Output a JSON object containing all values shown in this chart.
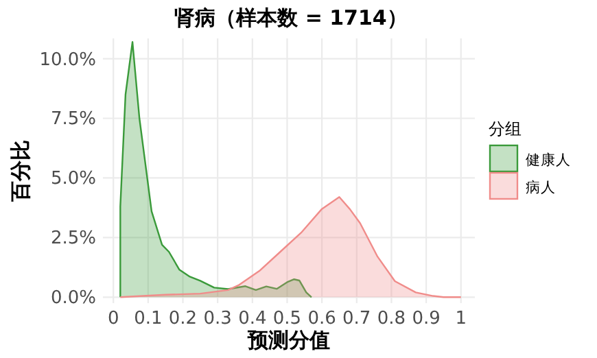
{
  "chart_data": {
    "type": "area",
    "title": "肾病（样本数 = 1714）",
    "xlabel": "预测分值",
    "ylabel": "百分比",
    "legend_title": "分组",
    "legend": "right",
    "grid": true,
    "xlim": [
      -0.03,
      1.04
    ],
    "ylim": [
      -0.25,
      10.85
    ],
    "xticks": [
      0,
      {
        "value": 0.1,
        "label": "0.1"
      },
      {
        "value": 0.2,
        "label": "0.2"
      },
      {
        "value": 0.3,
        "label": "0.3"
      },
      {
        "value": 0.4,
        "label": "0.4"
      },
      {
        "value": 0.5,
        "label": "0.5"
      },
      {
        "value": 0.6,
        "label": "0.6"
      },
      {
        "value": 0.7,
        "label": "0.7"
      },
      {
        "value": 0.8,
        "label": "0.8"
      },
      {
        "value": 0.9,
        "label": "0.9"
      },
      1
    ],
    "yticks": [
      {
        "value": 0,
        "label": "0.0%"
      },
      {
        "value": 2.5,
        "label": "2.5%"
      },
      {
        "value": 5,
        "label": "5.0%"
      },
      {
        "value": 7.5,
        "label": "7.5%"
      },
      {
        "value": 10,
        "label": "10.0%"
      }
    ],
    "series": [
      {
        "name": "健康人",
        "color": "#3a9a3a",
        "x": [
          0.02,
          0.02,
          0.035,
          0.055,
          0.075,
          0.11,
          0.14,
          0.16,
          0.19,
          0.22,
          0.25,
          0.29,
          0.33,
          0.38,
          0.41,
          0.44,
          0.47,
          0.5,
          0.52,
          0.535,
          0.555,
          0.57
        ],
        "values": [
          0,
          3.8,
          8.5,
          10.7,
          7.5,
          3.6,
          2.2,
          1.9,
          1.15,
          0.86,
          0.69,
          0.4,
          0.34,
          0.46,
          0.3,
          0.45,
          0.35,
          0.63,
          0.75,
          0.7,
          0.2,
          0
        ]
      },
      {
        "name": "病人",
        "color": "#f08c8a",
        "x": [
          0.02,
          0.15,
          0.25,
          0.33,
          0.36,
          0.42,
          0.48,
          0.54,
          0.6,
          0.65,
          0.68,
          0.71,
          0.76,
          0.81,
          0.87,
          0.92,
          0.95,
          1.0
        ],
        "values": [
          0,
          0.1,
          0.15,
          0.3,
          0.5,
          1.1,
          1.9,
          2.7,
          3.7,
          4.2,
          3.7,
          3.1,
          1.7,
          0.67,
          0.2,
          0.05,
          0,
          0
        ]
      }
    ]
  }
}
